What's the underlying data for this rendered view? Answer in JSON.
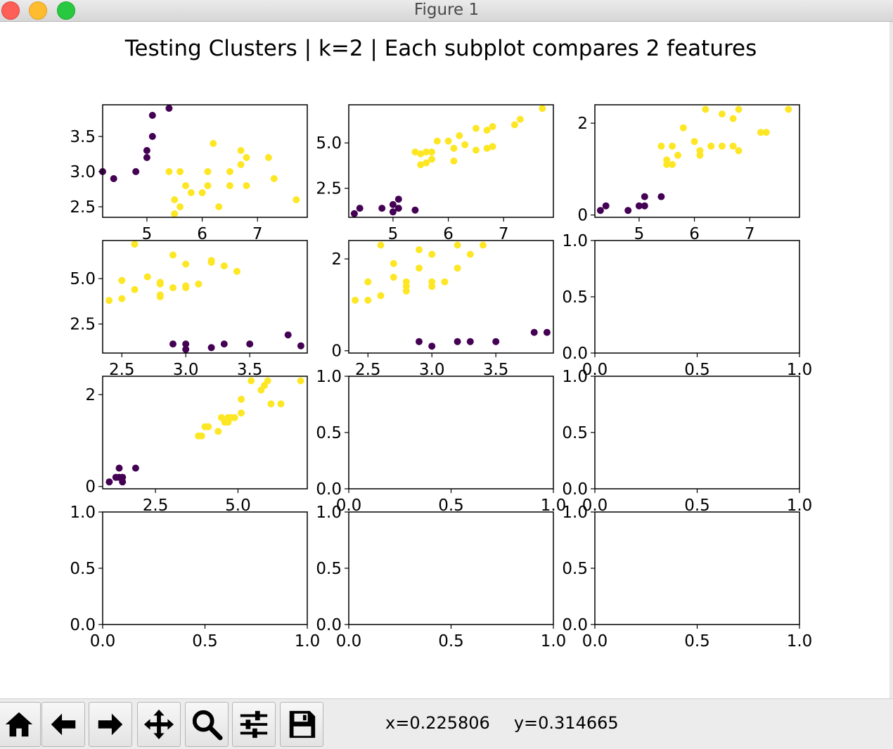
{
  "window": {
    "title": "Figure 1"
  },
  "figure": {
    "suptitle": "Testing Clusters | k=2 | Each subplot compares 2 features"
  },
  "colors": {
    "cluster_0": "#440154",
    "cluster_1": "#fde725"
  },
  "toolbar": {
    "buttons": [
      {
        "icon": "home-icon"
      },
      {
        "icon": "back-arrow-icon"
      },
      {
        "icon": "forward-arrow-icon"
      },
      {
        "icon": "pan-move-icon"
      },
      {
        "icon": "zoom-magnifier-icon"
      },
      {
        "icon": "configure-subplots-icon"
      },
      {
        "icon": "save-disk-icon"
      }
    ],
    "coords": {
      "x": "x=0.225806",
      "y": "y=0.314665"
    }
  },
  "chart_data": [
    {
      "type": "scatter",
      "xlim": [
        4.2,
        7.9
      ],
      "ylim": [
        2.35,
        3.95
      ],
      "xticks": [
        "5",
        "6",
        "7"
      ],
      "yticks": [
        "2.5",
        "3.0",
        "3.5"
      ],
      "series": [
        {
          "cluster": 0,
          "x": [
            4.2,
            4.4,
            4.8,
            5.0,
            5.0,
            5.1,
            5.1,
            5.4
          ],
          "y": [
            3.0,
            2.9,
            3.0,
            3.2,
            3.3,
            3.5,
            3.8,
            3.9
          ]
        },
        {
          "cluster": 1,
          "x": [
            5.4,
            5.5,
            5.5,
            5.6,
            5.6,
            5.7,
            5.8,
            6.0,
            6.1,
            6.1,
            6.2,
            6.3,
            6.5,
            6.5,
            6.7,
            6.7,
            6.8,
            6.8,
            7.2,
            7.3,
            7.7
          ],
          "y": [
            3.0,
            2.4,
            2.6,
            3.0,
            2.5,
            2.8,
            2.7,
            2.7,
            2.8,
            3.0,
            3.4,
            2.5,
            3.0,
            2.8,
            3.1,
            3.3,
            3.2,
            2.8,
            3.2,
            2.9,
            2.6
          ]
        }
      ]
    },
    {
      "type": "scatter",
      "xlim": [
        4.2,
        7.9
      ],
      "ylim": [
        0.9,
        7.1
      ],
      "xticks": [
        "5",
        "6",
        "7"
      ],
      "yticks": [
        "2.5",
        "5.0"
      ],
      "series": [
        {
          "cluster": 0,
          "x": [
            4.3,
            4.4,
            4.8,
            5.0,
            5.0,
            5.1,
            5.1,
            5.4
          ],
          "y": [
            1.1,
            1.4,
            1.4,
            1.2,
            1.6,
            1.4,
            1.9,
            1.3
          ]
        },
        {
          "cluster": 1,
          "x": [
            5.4,
            5.5,
            5.5,
            5.6,
            5.6,
            5.7,
            5.7,
            5.8,
            6.0,
            6.1,
            6.1,
            6.2,
            6.3,
            6.5,
            6.5,
            6.7,
            6.7,
            6.8,
            6.8,
            7.2,
            7.3,
            7.7
          ],
          "y": [
            4.5,
            4.4,
            3.8,
            4.5,
            3.9,
            4.5,
            4.1,
            5.1,
            5.1,
            4.0,
            4.7,
            5.4,
            4.9,
            4.6,
            5.8,
            4.7,
            5.7,
            4.8,
            5.9,
            6.0,
            6.3,
            6.9
          ]
        }
      ]
    },
    {
      "type": "scatter",
      "xlim": [
        4.2,
        7.9
      ],
      "ylim": [
        -0.05,
        2.4
      ],
      "xticks": [
        "5",
        "6",
        "7"
      ],
      "yticks": [
        "0",
        "2"
      ],
      "series": [
        {
          "cluster": 0,
          "x": [
            4.3,
            4.4,
            4.8,
            5.0,
            5.1,
            5.1,
            5.4
          ],
          "y": [
            0.1,
            0.2,
            0.1,
            0.2,
            0.2,
            0.4,
            0.4
          ]
        },
        {
          "cluster": 1,
          "x": [
            5.4,
            5.5,
            5.5,
            5.6,
            5.6,
            5.7,
            5.8,
            6.0,
            6.1,
            6.1,
            6.2,
            6.3,
            6.5,
            6.5,
            6.7,
            6.7,
            6.8,
            6.8,
            7.2,
            7.3,
            7.7
          ],
          "y": [
            1.5,
            1.2,
            1.1,
            1.5,
            1.1,
            1.3,
            1.9,
            1.6,
            1.3,
            1.4,
            2.3,
            1.5,
            2.2,
            1.5,
            1.5,
            2.1,
            1.4,
            2.3,
            1.8,
            1.8,
            2.3
          ]
        }
      ]
    },
    {
      "type": "scatter",
      "xlim": [
        2.35,
        3.95
      ],
      "ylim": [
        0.9,
        7.1
      ],
      "xticks": [
        "2.5",
        "3.0",
        "3.5"
      ],
      "yticks": [
        "2.5",
        "5.0"
      ],
      "series": [
        {
          "cluster": 0,
          "x": [
            2.9,
            3.0,
            3.0,
            3.2,
            3.3,
            3.5,
            3.8,
            3.9
          ],
          "y": [
            1.4,
            1.4,
            1.1,
            1.2,
            1.4,
            1.4,
            1.9,
            1.3
          ]
        },
        {
          "cluster": 1,
          "x": [
            2.4,
            2.5,
            2.5,
            2.6,
            2.6,
            2.7,
            2.8,
            2.8,
            2.8,
            2.8,
            2.9,
            2.9,
            3.0,
            3.0,
            3.0,
            3.1,
            3.2,
            3.2,
            3.3,
            3.4
          ],
          "y": [
            3.8,
            4.9,
            3.9,
            4.4,
            6.9,
            5.1,
            4.8,
            4.7,
            4.0,
            4.1,
            6.3,
            4.5,
            4.6,
            5.8,
            4.5,
            4.7,
            5.9,
            6.0,
            5.7,
            5.4
          ]
        }
      ]
    },
    {
      "type": "scatter",
      "xlim": [
        2.35,
        3.95
      ],
      "ylim": [
        -0.05,
        2.4
      ],
      "xticks": [
        "2.5",
        "3.0",
        "3.5"
      ],
      "yticks": [
        "0",
        "2"
      ],
      "series": [
        {
          "cluster": 0,
          "x": [
            2.9,
            3.0,
            3.2,
            3.3,
            3.5,
            3.8,
            3.9
          ],
          "y": [
            0.2,
            0.1,
            0.2,
            0.2,
            0.2,
            0.4,
            0.4
          ]
        },
        {
          "cluster": 1,
          "x": [
            2.4,
            2.5,
            2.5,
            2.6,
            2.6,
            2.7,
            2.7,
            2.8,
            2.8,
            2.8,
            2.9,
            2.9,
            3.0,
            3.0,
            3.0,
            3.1,
            3.2,
            3.2,
            3.3,
            3.4
          ],
          "y": [
            1.1,
            1.1,
            1.5,
            1.2,
            2.3,
            1.6,
            1.9,
            1.5,
            1.3,
            1.4,
            1.8,
            2.2,
            1.5,
            1.4,
            2.1,
            1.5,
            1.8,
            2.3,
            2.1,
            2.3
          ]
        }
      ]
    },
    {
      "type": "scatter",
      "empty": true,
      "xlim": [
        0,
        1
      ],
      "ylim": [
        0,
        1
      ],
      "xticks": [
        "0.0",
        "0.5",
        "1.0"
      ],
      "yticks": [
        "0.0",
        "0.5",
        "1.0"
      ],
      "series": []
    },
    {
      "type": "scatter",
      "xlim": [
        0.9,
        7.1
      ],
      "ylim": [
        -0.05,
        2.4
      ],
      "xticks": [
        "2.5",
        "5.0"
      ],
      "yticks": [
        "0",
        "2"
      ],
      "series": [
        {
          "cluster": 0,
          "x": [
            1.1,
            1.3,
            1.4,
            1.4,
            1.5,
            1.5,
            1.5,
            1.9
          ],
          "y": [
            0.1,
            0.2,
            0.2,
            0.4,
            0.1,
            0.2,
            0.2,
            0.4
          ]
        },
        {
          "cluster": 1,
          "x": [
            3.8,
            3.9,
            4.0,
            4.1,
            4.4,
            4.5,
            4.5,
            4.6,
            4.7,
            4.7,
            4.8,
            4.9,
            5.1,
            5.1,
            5.4,
            5.7,
            5.8,
            5.9,
            6.0,
            6.3,
            6.9
          ],
          "y": [
            1.1,
            1.1,
            1.3,
            1.3,
            1.2,
            1.5,
            1.5,
            1.4,
            1.5,
            1.4,
            1.5,
            1.5,
            1.6,
            1.9,
            2.3,
            2.1,
            2.2,
            2.3,
            1.8,
            1.8,
            2.3
          ]
        }
      ]
    },
    {
      "type": "scatter",
      "empty": true,
      "xlim": [
        0,
        1
      ],
      "ylim": [
        0,
        1
      ],
      "xticks": [
        "0.0",
        "0.5",
        "1.0"
      ],
      "yticks": [
        "0.0",
        "0.5",
        "1.0"
      ],
      "series": []
    },
    {
      "type": "scatter",
      "empty": true,
      "xlim": [
        0,
        1
      ],
      "ylim": [
        0,
        1
      ],
      "xticks": [
        "0.0",
        "0.5",
        "1.0"
      ],
      "yticks": [
        "0.0",
        "0.5",
        "1.0"
      ],
      "series": []
    },
    {
      "type": "scatter",
      "empty": true,
      "xlim": [
        0,
        1
      ],
      "ylim": [
        0,
        1
      ],
      "xticks": [
        "0.0",
        "0.5",
        "1.0"
      ],
      "yticks": [
        "0.0",
        "0.5",
        "1.0"
      ],
      "series": []
    },
    {
      "type": "scatter",
      "empty": true,
      "xlim": [
        0,
        1
      ],
      "ylim": [
        0,
        1
      ],
      "xticks": [
        "0.0",
        "0.5",
        "1.0"
      ],
      "yticks": [
        "0.0",
        "0.5",
        "1.0"
      ],
      "series": []
    },
    {
      "type": "scatter",
      "empty": true,
      "xlim": [
        0,
        1
      ],
      "ylim": [
        0,
        1
      ],
      "xticks": [
        "0.0",
        "0.5",
        "1.0"
      ],
      "yticks": [
        "0.0",
        "0.5",
        "1.0"
      ],
      "series": []
    }
  ]
}
